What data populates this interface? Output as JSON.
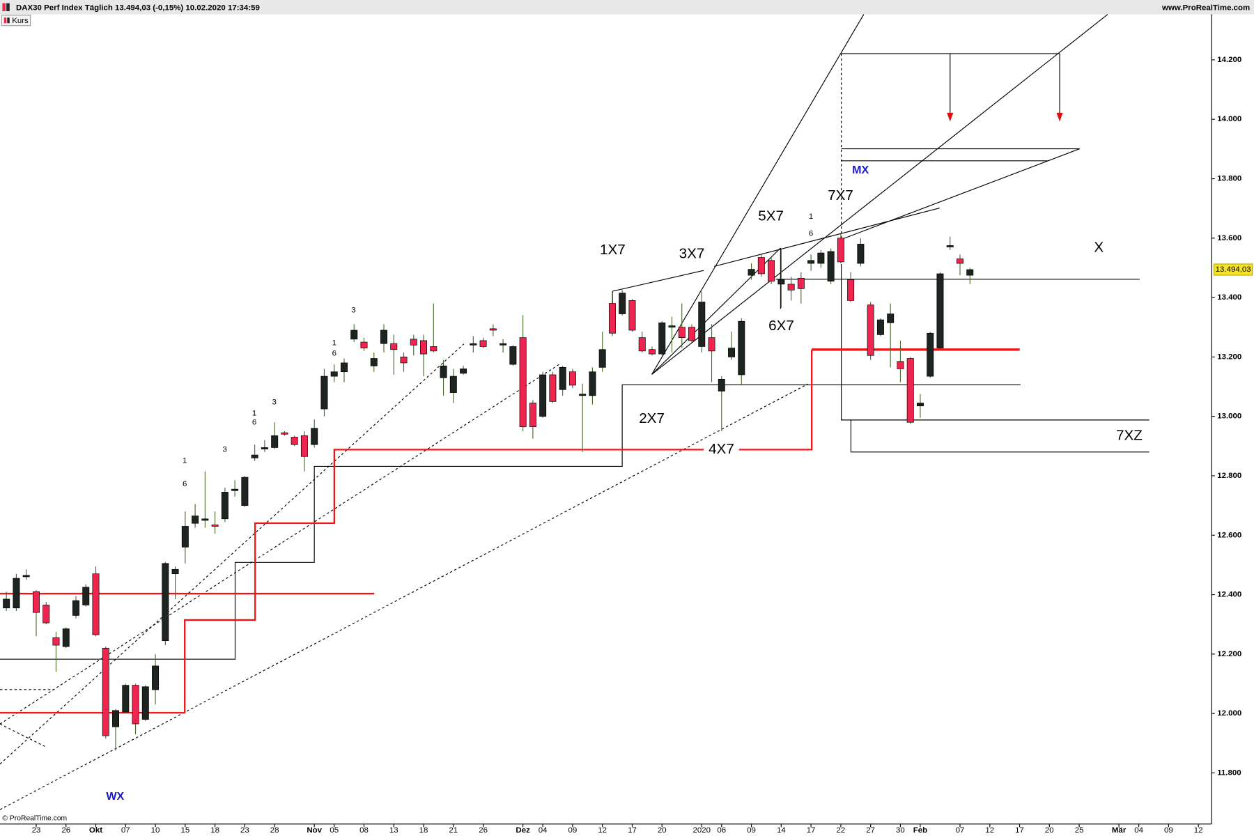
{
  "chart_data": {
    "type": "candlestick",
    "title": "DAX30 Perf Index Täglich 13.494,03 (-0,15%) 10.02.2020 17:34:59",
    "source": "www.ProRealTime.com",
    "legend": "Kurs",
    "copyright": "© ProRealTime.com",
    "last_label": "13.494,03",
    "up_color": "#1e2420",
    "down_color": "#f0254f",
    "wick_color": "#4a6b2f",
    "xlim": [
      -0.644,
      121.33
    ],
    "ylim": [
      11628,
      14353
    ],
    "yticks": [
      {
        "value": 11800,
        "label": "11.800"
      },
      {
        "value": 12000,
        "label": "12.000"
      },
      {
        "value": 12200,
        "label": "12.200"
      },
      {
        "value": 12400,
        "label": "12.400"
      },
      {
        "value": 12600,
        "label": "12.600"
      },
      {
        "value": 12800,
        "label": "12.800"
      },
      {
        "value": 13000,
        "label": "13.000"
      },
      {
        "value": 13200,
        "label": "13.200"
      },
      {
        "value": 13400,
        "label": "13.400"
      },
      {
        "value": 13600,
        "label": "13.600"
      },
      {
        "value": 13800,
        "label": "13.800"
      },
      {
        "value": 14000,
        "label": "14.000"
      },
      {
        "value": 14200,
        "label": "14.200"
      }
    ],
    "xticks": [
      {
        "value": 3,
        "label": "23"
      },
      {
        "value": 6,
        "label": "26"
      },
      {
        "value": 9,
        "label": "Okt"
      },
      {
        "value": 12,
        "label": "07"
      },
      {
        "value": 15,
        "label": "10"
      },
      {
        "value": 18,
        "label": "15"
      },
      {
        "value": 21,
        "label": "18"
      },
      {
        "value": 24,
        "label": "23"
      },
      {
        "value": 27,
        "label": "28"
      },
      {
        "value": 31,
        "label": "Nov"
      },
      {
        "value": 33,
        "label": "05"
      },
      {
        "value": 36,
        "label": "08"
      },
      {
        "value": 39,
        "label": "13"
      },
      {
        "value": 42,
        "label": "18"
      },
      {
        "value": 45,
        "label": "21"
      },
      {
        "value": 48,
        "label": "26"
      },
      {
        "value": 52,
        "label": "Dez"
      },
      {
        "value": 54,
        "label": "04"
      },
      {
        "value": 57,
        "label": "09"
      },
      {
        "value": 60,
        "label": "12"
      },
      {
        "value": 63,
        "label": "17"
      },
      {
        "value": 66,
        "label": "20"
      },
      {
        "value": 70,
        "label": "2020"
      },
      {
        "value": 72,
        "label": "06"
      },
      {
        "value": 75,
        "label": "09"
      },
      {
        "value": 78,
        "label": "14"
      },
      {
        "value": 81,
        "label": "17"
      },
      {
        "value": 84,
        "label": "22"
      },
      {
        "value": 87,
        "label": "27"
      },
      {
        "value": 90,
        "label": "30"
      },
      {
        "value": 92,
        "label": "Feb"
      },
      {
        "value": 96,
        "label": "07"
      },
      {
        "value": 99,
        "label": "12"
      },
      {
        "value": 102,
        "label": "17"
      },
      {
        "value": 105,
        "label": "20"
      },
      {
        "value": 108,
        "label": "25"
      },
      {
        "value": 112,
        "label": "Mär"
      },
      {
        "value": 114,
        "label": "04"
      },
      {
        "value": 117,
        "label": "09"
      },
      {
        "value": 120,
        "label": "12"
      }
    ],
    "open": [
      12355,
      12355,
      12460,
      12410,
      12365,
      12255,
      12225,
      12330,
      12365,
      12470,
      12220,
      11955,
      12005,
      12095,
      11980,
      12080,
      12245,
      12470,
      12560,
      12640,
      12650,
      12635,
      12655,
      12750,
      12700,
      12860,
      12890,
      12895,
      12945,
      12930,
      12935,
      12905,
      13025,
      13135,
      13150,
      13260,
      13250,
      13170,
      13245,
      13245,
      13200,
      13260,
      13255,
      13235,
      13130,
      13080,
      13145,
      13240,
      13255,
      13295,
      13240,
      13175,
      13265,
      13045,
      13000,
      13140,
      13090,
      13150,
      13070,
      13070,
      13165,
      13380,
      13345,
      13390,
      13265,
      13225,
      13210,
      13300,
      13300,
      13300,
      13235,
      13265,
      13085,
      13200,
      13140,
      13475,
      13535,
      13525,
      13445,
      13445,
      13465,
      13515,
      13515,
      13455,
      13600,
      13460,
      13515,
      13375,
      13275,
      13315,
      13185,
      13195,
      13035,
      13135,
      13230,
      13570,
      13530,
      13475
    ],
    "high": [
      12410,
      12470,
      12485,
      12415,
      12375,
      12275,
      12290,
      12395,
      12435,
      12495,
      12225,
      12015,
      12100,
      12100,
      12095,
      12200,
      12510,
      12495,
      12680,
      12705,
      12815,
      12680,
      12760,
      12785,
      12800,
      12905,
      12920,
      12980,
      12950,
      12935,
      12950,
      12990,
      13160,
      13175,
      13195,
      13310,
      13265,
      13215,
      13310,
      13275,
      13215,
      13275,
      13275,
      13380,
      13190,
      13160,
      13170,
      13270,
      13265,
      13310,
      13260,
      13240,
      13340,
      13055,
      13150,
      13150,
      13170,
      13160,
      13110,
      13165,
      13285,
      13420,
      13425,
      13395,
      13285,
      13235,
      13320,
      13335,
      13380,
      13310,
      13420,
      13310,
      13135,
      13285,
      13330,
      13515,
      13545,
      13535,
      13565,
      13470,
      13485,
      13545,
      13560,
      13565,
      13615,
      13485,
      13600,
      13385,
      13330,
      13380,
      13255,
      13200,
      13075,
      13285,
      13485,
      13605,
      13545,
      13500
    ],
    "low": [
      12345,
      12345,
      12450,
      12260,
      12300,
      12140,
      12220,
      12320,
      12360,
      12260,
      11915,
      11875,
      12000,
      11930,
      11975,
      12030,
      12230,
      12385,
      12505,
      12625,
      12625,
      12605,
      12645,
      12730,
      12695,
      12850,
      12880,
      12890,
      12935,
      12900,
      12815,
      12895,
      13000,
      13115,
      13115,
      13250,
      13220,
      13150,
      13215,
      13140,
      13150,
      13205,
      13135,
      13215,
      13070,
      13045,
      13140,
      13215,
      13230,
      13270,
      13215,
      13170,
      12950,
      12925,
      12995,
      13045,
      13070,
      13095,
      12880,
      13040,
      13150,
      13270,
      13340,
      13285,
      13215,
      13205,
      13205,
      13215,
      13230,
      13250,
      13215,
      13115,
      12950,
      13190,
      13105,
      13460,
      13470,
      13445,
      13365,
      13390,
      13380,
      13490,
      13500,
      13445,
      13515,
      13385,
      13505,
      13190,
      13270,
      13165,
      13115,
      12975,
      12995,
      13130,
      13225,
      13560,
      13475,
      13445
    ],
    "close": [
      12385,
      12455,
      12465,
      12340,
      12305,
      12230,
      12285,
      12380,
      12425,
      12265,
      11925,
      12010,
      12095,
      11965,
      12090,
      12160,
      12505,
      12485,
      12630,
      12665,
      12655,
      12630,
      12745,
      12755,
      12795,
      12870,
      12895,
      12935,
      12940,
      12905,
      12865,
      12960,
      13135,
      13150,
      13180,
      13290,
      13230,
      13195,
      13290,
      13225,
      13180,
      13240,
      13210,
      13220,
      13170,
      13135,
      13160,
      13245,
      13235,
      13290,
      13245,
      13235,
      12965,
      12965,
      13140,
      13050,
      13165,
      13105,
      13075,
      13150,
      13225,
      13280,
      13415,
      13290,
      13220,
      13210,
      13315,
      13305,
      13265,
      13255,
      13385,
      13220,
      13125,
      13230,
      13320,
      13495,
      13480,
      13455,
      13460,
      13425,
      13430,
      13525,
      13550,
      13555,
      13520,
      13390,
      13580,
      13205,
      13325,
      13345,
      13160,
      12980,
      13045,
      13280,
      13480,
      13575,
      13515,
      13494.03
    ]
  },
  "annotations": [
    "1X7",
    "3X7",
    "5X7",
    "7X7",
    "6X7",
    "2X7",
    "4X7",
    "X",
    "7XZ",
    "MX",
    "WX",
    "3",
    "1",
    "6",
    "3",
    "1",
    "6",
    "3",
    "1",
    "6",
    "1",
    "6"
  ]
}
